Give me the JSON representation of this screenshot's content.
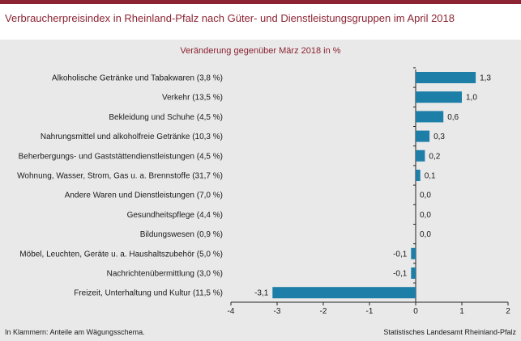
{
  "chart_data": {
    "type": "bar",
    "orientation": "horizontal",
    "title": "Verbraucherpreisindex in Rheinland-Pfalz nach Güter- und Dienstleistungsgruppen im April 2018",
    "subtitle": "Veränderung gegenüber März 2018 in %",
    "categories": [
      "Alkoholische Getränke und Tabakwaren (3,8 %)",
      "Verkehr (13,5 %)",
      "Bekleidung und Schuhe (4,5 %)",
      "Nahrungsmittel und alkoholfreie Getränke (10,3 %)",
      "Beherbergungs- und Gaststättendienstleistungen (4,5 %)",
      "Wohnung, Wasser, Strom, Gas u. a. Brennstoffe (31,7 %)",
      "Andere Waren und Dienstleistungen (7,0 %)",
      "Gesundheitspflege (4,4 %)",
      "Bildungswesen (0,9 %)",
      "Möbel, Leuchten, Geräte u. a. Haushaltszubehör (5,0 %)",
      "Nachrichtenübermittlung (3,0 %)",
      "Freizeit, Unterhaltung und Kultur (11,5 %)"
    ],
    "values": [
      1.3,
      1.0,
      0.6,
      0.3,
      0.2,
      0.1,
      0.0,
      0.0,
      0.0,
      -0.1,
      -0.1,
      -3.1
    ],
    "value_labels": [
      "1,3",
      "1,0",
      "0,6",
      "0,3",
      "0,2",
      "0,1",
      "0,0",
      "0,0",
      "0,0",
      "-0,1",
      "-0,1",
      "-3,1"
    ],
    "xlim": [
      -4,
      2
    ],
    "xticks": [
      -4,
      -3,
      -2,
      -1,
      0,
      1,
      2
    ],
    "xtick_labels": [
      "-4",
      "-3",
      "-2",
      "-1",
      "0",
      "1",
      "2"
    ],
    "bar_color": "#1d7fa8",
    "grid": false,
    "legend": false
  },
  "footer": {
    "note": "In Klammern: Anteile am Wägungsschema.",
    "source": "Statistisches Landesamt Rheinland-Pfalz"
  },
  "colors": {
    "accent": "#8b2332",
    "panel_background": "#e9e9e9"
  }
}
